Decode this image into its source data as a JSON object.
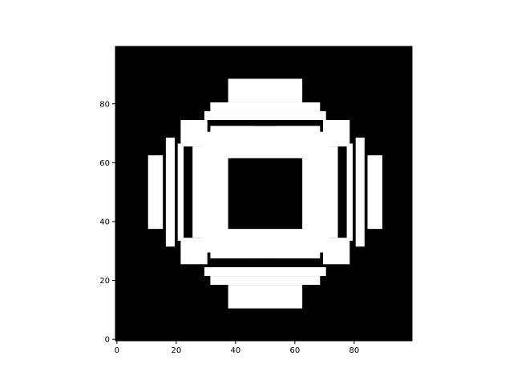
{
  "chart_data": {
    "type": "heatmap",
    "colormap": "gray",
    "origin": "lower",
    "background": "#000000",
    "foreground": "#ffffff",
    "xlim": [
      -0.5,
      99.5
    ],
    "ylim": [
      -0.5,
      99.5
    ],
    "x_ticks": [
      0,
      20,
      40,
      60,
      80
    ],
    "y_ticks": [
      0,
      20,
      40,
      60,
      80
    ],
    "x_tick_labels": [
      "0",
      "20",
      "40",
      "60",
      "80"
    ],
    "y_tick_labels": [
      "0",
      "20",
      "40",
      "60",
      "80"
    ],
    "grid": false,
    "white_regions": [
      {
        "name": "top-bar",
        "x": [
          38,
          62
        ],
        "y": [
          81,
          88
        ]
      },
      {
        "name": "top-band-1",
        "x": [
          32,
          68
        ],
        "y": [
          78,
          80
        ]
      },
      {
        "name": "top-band-2",
        "x": [
          30,
          70
        ],
        "y": [
          75,
          77
        ]
      },
      {
        "name": "bottom-bar",
        "x": [
          38,
          62
        ],
        "y": [
          11,
          18
        ]
      },
      {
        "name": "bottom-band-1",
        "x": [
          32,
          68
        ],
        "y": [
          19,
          21
        ]
      },
      {
        "name": "bottom-band-2",
        "x": [
          30,
          70
        ],
        "y": [
          22,
          24
        ]
      },
      {
        "name": "left-bar",
        "x": [
          11,
          15
        ],
        "y": [
          38,
          62
        ]
      },
      {
        "name": "right-bar",
        "x": [
          85,
          89
        ],
        "y": [
          38,
          62
        ]
      },
      {
        "name": "left-strip-1",
        "x": [
          17,
          19
        ],
        "y": [
          32,
          68
        ]
      },
      {
        "name": "left-strip-2",
        "x": [
          21,
          22
        ],
        "y": [
          34,
          66
        ]
      },
      {
        "name": "right-strip-1",
        "x": [
          81,
          83
        ],
        "y": [
          32,
          68
        ]
      },
      {
        "name": "right-strip-2",
        "x": [
          78,
          79
        ],
        "y": [
          34,
          66
        ]
      },
      {
        "name": "left-column",
        "x": [
          26,
          29
        ],
        "y": [
          35,
          65
        ]
      },
      {
        "name": "right-column",
        "x": [
          71,
          74
        ],
        "y": [
          35,
          65
        ]
      },
      {
        "name": "ring-top",
        "x": [
          32,
          68
        ],
        "y": [
          62,
          72
        ]
      },
      {
        "name": "ring-bottom",
        "x": [
          32,
          68
        ],
        "y": [
          28,
          38
        ]
      },
      {
        "name": "ring-left",
        "x": [
          29,
          38
        ],
        "y": [
          30,
          70
        ]
      },
      {
        "name": "ring-right",
        "x": [
          62,
          71
        ],
        "y": [
          30,
          70
        ]
      },
      {
        "name": "corner-tl",
        "x": [
          22,
          30
        ],
        "y": [
          66,
          74
        ]
      },
      {
        "name": "corner-tr",
        "x": [
          70,
          78
        ],
        "y": [
          66,
          74
        ]
      },
      {
        "name": "corner-bl",
        "x": [
          22,
          30
        ],
        "y": [
          26,
          34
        ]
      },
      {
        "name": "corner-br",
        "x": [
          70,
          78
        ],
        "y": [
          26,
          34
        ]
      }
    ],
    "black_regions": [
      {
        "name": "center-hole",
        "x": [
          38,
          62
        ],
        "y": [
          38,
          61
        ]
      },
      {
        "name": "ring-notch-top",
        "x": [
          47,
          53
        ],
        "y": [
          73,
          74
        ]
      },
      {
        "name": "ring-notch-bottom",
        "x": [
          47,
          53
        ],
        "y": [
          26,
          27
        ]
      }
    ]
  }
}
